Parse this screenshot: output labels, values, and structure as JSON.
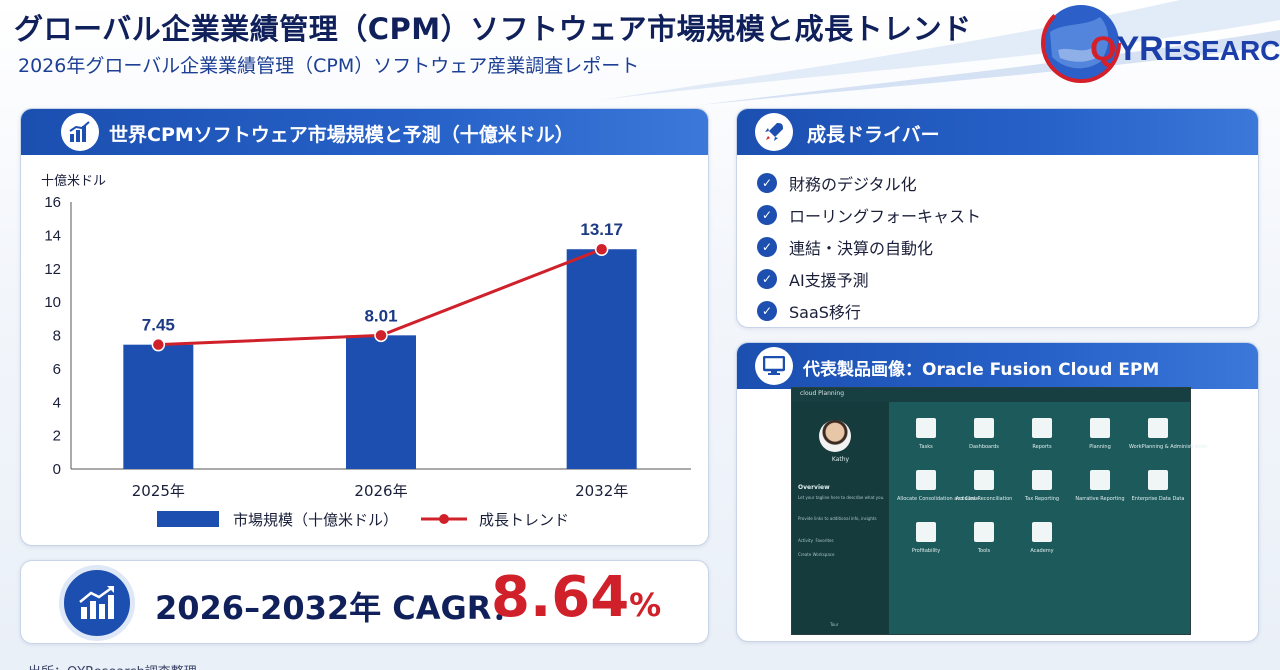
{
  "header": {
    "title": "グローバル企業業績管理（CPM）ソフトウェア市場規模と成長トレンド",
    "subtitle": "2026年グローバル企業業績管理（CPM）ソフトウェア産業調査レポート"
  },
  "logo": {
    "q": "Q",
    "y": "Y",
    "r": "R",
    "rest": "ESEARCH",
    "colors": {
      "red": "#d4202a",
      "blue": "#1b3ea8"
    }
  },
  "chart_panel": {
    "title": "世界CPMソフトウェア市場規模と予測（十億米ドル）",
    "icon": "bar-chart-icon"
  },
  "chart_data": {
    "type": "bar",
    "title": "世界CPMソフトウェア市場規模と予測（十億米ドル）",
    "ylabel": "十億米ドル",
    "categories": [
      "2025年",
      "2026年",
      "2032年"
    ],
    "ylim": [
      0,
      16
    ],
    "yticks": [
      "0",
      "2",
      "4",
      "6",
      "8",
      "10",
      "12",
      "14",
      "16"
    ],
    "series": [
      {
        "name": "市場規模（十億米ドル）",
        "type": "bar",
        "values": [
          7.45,
          8.01,
          13.17
        ],
        "color": "#1d4fb0"
      },
      {
        "name": "成長トレンド",
        "type": "line",
        "values": [
          7.45,
          8.01,
          13.17
        ],
        "color": "#d0202a"
      }
    ],
    "data_labels": [
      "7.45",
      "8.01",
      "13.17"
    ],
    "legend": "bottom",
    "grid": false
  },
  "drivers": {
    "title": "成長ドライバー",
    "icon": "rocket-icon",
    "items": [
      "財務のデジタル化",
      "ローリングフォーキャスト",
      "連結・決算の自動化",
      "AI支援予測",
      "SaaS移行"
    ]
  },
  "product": {
    "title": "代表製品画像：Oracle Fusion Cloud EPM",
    "icon": "monitor-icon",
    "screen": {
      "app_name": "cloud Planning",
      "user": "Kathy",
      "overview": "Overview",
      "overview_text": "Let your tagline here to describe what you.",
      "links_text": "Provide links to additional info, insights",
      "activity": "Activity",
      "favorites": "Favorites",
      "create_workspace": "Create Workspace",
      "tour": "Tour",
      "tiles": [
        "Tasks",
        "Dashboards",
        "Reports",
        "Planning",
        "WorkPlanning & Administration",
        "Allocate Consolidation and Close",
        "Account Reconciliation",
        "Tax Reporting",
        "Narrative Reporting",
        "Enterprise Data Data",
        "Profitability",
        "Tools",
        "Academy"
      ]
    }
  },
  "cagr": {
    "label": "2026–2032年 CAGR：",
    "value": "8.64",
    "unit": "%",
    "icon": "growth-chart-icon"
  },
  "source": "出所：QYResearch調査整理"
}
